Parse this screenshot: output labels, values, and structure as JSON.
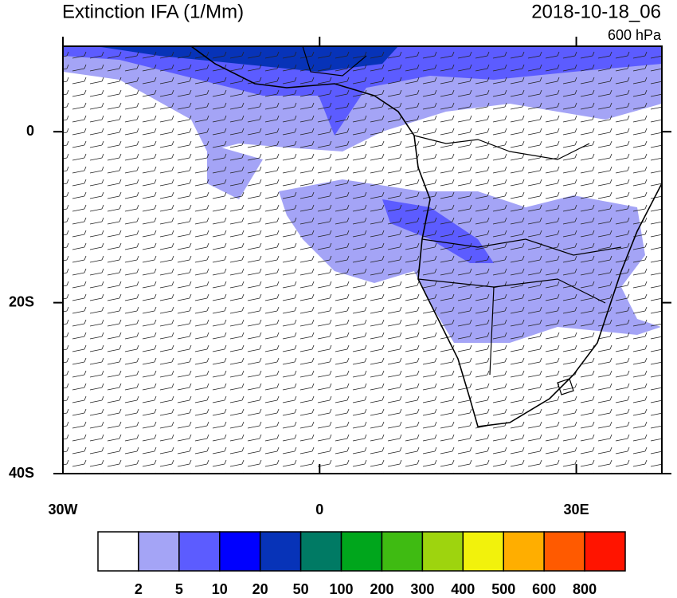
{
  "map": {
    "title": "Extinction IFA (1/Mm)",
    "valid_time": "2018-10-18_06",
    "level": "600 hPa",
    "lon_range": [
      -30,
      40
    ],
    "lat_range": [
      -40,
      10
    ],
    "lon_ticks": [
      {
        "value": -30,
        "label": "30W"
      },
      {
        "value": 0,
        "label": "0"
      },
      {
        "value": 30,
        "label": "30E"
      }
    ],
    "lat_ticks": [
      {
        "value": 0,
        "label": "0"
      },
      {
        "value": -20,
        "label": "20S"
      },
      {
        "value": -40,
        "label": "40S"
      }
    ],
    "colorbar": {
      "levels": [
        2,
        5,
        10,
        20,
        50,
        100,
        200,
        300,
        400,
        500,
        600,
        800
      ],
      "colors": [
        "#ffffff",
        "#a4a4f6",
        "#5c5cff",
        "#0000ff",
        "#0733b8",
        "#007a64",
        "#00a61c",
        "#3fbb12",
        "#9ed40e",
        "#f2f20c",
        "#ffae00",
        "#ff5a00",
        "#ff1400"
      ]
    }
  }
}
